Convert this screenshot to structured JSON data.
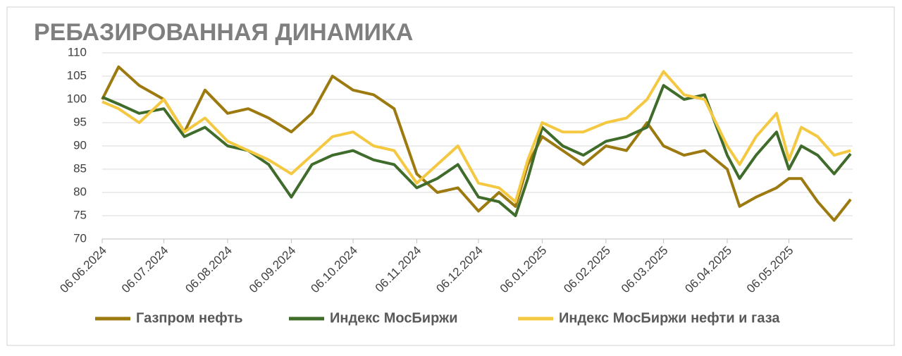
{
  "chart_data": {
    "type": "line",
    "title": "РЕБАЗИРОВАННАЯ ДИНАМИКА",
    "x": [
      "06.06.2024",
      "14.06.2024",
      "24.06.2024",
      "06.07.2024",
      "16.07.2024",
      "26.07.2024",
      "06.08.2024",
      "16.08.2024",
      "26.08.2024",
      "06.09.2024",
      "16.09.2024",
      "26.09.2024",
      "06.10.2024",
      "16.10.2024",
      "26.10.2024",
      "06.11.2024",
      "16.11.2024",
      "26.11.2024",
      "06.12.2024",
      "16.12.2024",
      "24.12.2024",
      "30.12.2024",
      "06.01.2025",
      "16.01.2025",
      "26.01.2025",
      "06.02.2025",
      "16.02.2025",
      "26.02.2025",
      "06.03.2025",
      "16.03.2025",
      "26.03.2025",
      "06.04.2025",
      "12.04.2025",
      "20.04.2025",
      "30.04.2025",
      "06.05.2025",
      "12.05.2025",
      "20.05.2025",
      "28.05.2025",
      "05.06.2025"
    ],
    "series": [
      {
        "name": "Газпром нефть",
        "color": "#9c7a10",
        "values": [
          100,
          107,
          103,
          100,
          93,
          102,
          97,
          98,
          96,
          93,
          97,
          105,
          102,
          101,
          98,
          84,
          80,
          81,
          76,
          80,
          77,
          86,
          92,
          89,
          86,
          90,
          89,
          95,
          90,
          88,
          89,
          85,
          77,
          79,
          81,
          83,
          83,
          78,
          74,
          78.5
        ]
      },
      {
        "name": "Индекс МосБиржи",
        "color": "#3f6b2b",
        "values": [
          100.5,
          99,
          97,
          98,
          92,
          94,
          90,
          89,
          86,
          79,
          86,
          88,
          89,
          87,
          86,
          81,
          83,
          86,
          79,
          78,
          75,
          83,
          94,
          90,
          88,
          91,
          92,
          94,
          103,
          100,
          101,
          88,
          83,
          88,
          93,
          85,
          90,
          88,
          84,
          88.3
        ]
      },
      {
        "name": "Индекс МосБиржи нефти и газа",
        "color": "#f5c842",
        "values": [
          99.5,
          98,
          95,
          100,
          93,
          96,
          91,
          89,
          87,
          84,
          88,
          92,
          93,
          90,
          89,
          82,
          86,
          90,
          82,
          81,
          78,
          87,
          95,
          93,
          93,
          95,
          96,
          100,
          106,
          101,
          100,
          90,
          86,
          92,
          97,
          87,
          94,
          92,
          88,
          89
        ]
      }
    ],
    "xlim": [
      "06.06.2024",
      "06.06.2025"
    ],
    "xticks": [
      "06.06.2024",
      "06.07.2024",
      "06.08.2024",
      "06.09.2024",
      "06.10.2024",
      "06.11.2024",
      "06.12.2024",
      "06.01.2025",
      "06.02.2025",
      "06.03.2025",
      "06.04.2025",
      "06.05.2025"
    ],
    "ylim": [
      70,
      110
    ],
    "yticks": [
      70,
      75,
      80,
      85,
      90,
      95,
      100,
      105,
      110
    ],
    "grid": true,
    "legend": "bottom"
  }
}
